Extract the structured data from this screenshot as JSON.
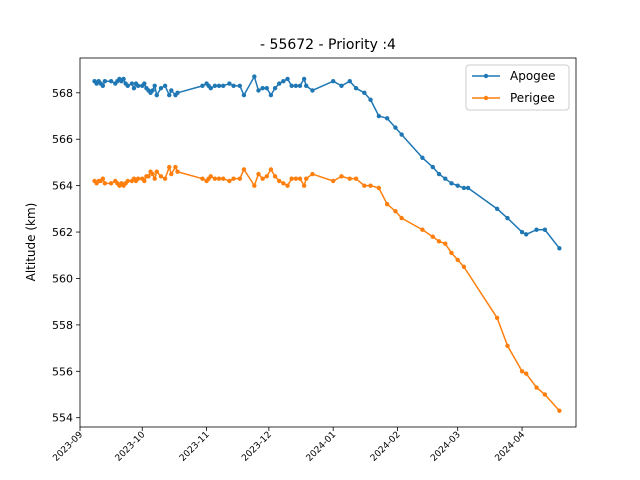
{
  "chart_data": {
    "type": "line",
    "title": "- 55672 - Priority :4",
    "xlabel": "",
    "ylabel": "Altitude (km)",
    "xlim": [
      "2023-09-01",
      "2024-04-27"
    ],
    "ylim": [
      553.6,
      569.5
    ],
    "x_ticks": [
      "2023-09",
      "2023-10",
      "2023-11",
      "2023-12",
      "2024-01",
      "2024-02",
      "2024-03",
      "2024-04"
    ],
    "y_ticks": [
      554,
      556,
      558,
      560,
      562,
      564,
      566,
      568
    ],
    "grid": false,
    "legend_position": "top-right",
    "series": [
      {
        "name": "Apogee",
        "color": "#1f77b4",
        "points": [
          [
            "2023-09-08",
            568.5
          ],
          [
            "2023-09-09",
            568.4
          ],
          [
            "2023-09-10",
            568.5
          ],
          [
            "2023-09-11",
            568.4
          ],
          [
            "2023-09-12",
            568.3
          ],
          [
            "2023-09-13",
            568.5
          ],
          [
            "2023-09-16",
            568.5
          ],
          [
            "2023-09-18",
            568.4
          ],
          [
            "2023-09-19",
            568.5
          ],
          [
            "2023-09-20",
            568.6
          ],
          [
            "2023-09-21",
            568.5
          ],
          [
            "2023-09-22",
            568.6
          ],
          [
            "2023-09-23",
            568.4
          ],
          [
            "2023-09-24",
            568.3
          ],
          [
            "2023-09-26",
            568.4
          ],
          [
            "2023-09-27",
            568.2
          ],
          [
            "2023-09-28",
            568.4
          ],
          [
            "2023-09-29",
            568.3
          ],
          [
            "2023-10-01",
            568.3
          ],
          [
            "2023-10-02",
            568.4
          ],
          [
            "2023-10-03",
            568.2
          ],
          [
            "2023-10-04",
            568.1
          ],
          [
            "2023-10-05",
            568.0
          ],
          [
            "2023-10-06",
            568.1
          ],
          [
            "2023-10-07",
            568.3
          ],
          [
            "2023-10-08",
            567.9
          ],
          [
            "2023-10-10",
            568.2
          ],
          [
            "2023-10-12",
            568.3
          ],
          [
            "2023-10-14",
            567.9
          ],
          [
            "2023-10-15",
            568.1
          ],
          [
            "2023-10-17",
            567.9
          ],
          [
            "2023-10-18",
            568.0
          ],
          [
            "2023-10-30",
            568.3
          ],
          [
            "2023-11-01",
            568.4
          ],
          [
            "2023-11-02",
            568.3
          ],
          [
            "2023-11-03",
            568.2
          ],
          [
            "2023-11-05",
            568.3
          ],
          [
            "2023-11-07",
            568.3
          ],
          [
            "2023-11-09",
            568.3
          ],
          [
            "2023-11-12",
            568.4
          ],
          [
            "2023-11-14",
            568.3
          ],
          [
            "2023-11-17",
            568.3
          ],
          [
            "2023-11-19",
            567.9
          ],
          [
            "2023-11-24",
            568.7
          ],
          [
            "2023-11-26",
            568.1
          ],
          [
            "2023-11-28",
            568.2
          ],
          [
            "2023-11-30",
            568.2
          ],
          [
            "2023-12-02",
            567.9
          ],
          [
            "2023-12-04",
            568.2
          ],
          [
            "2023-12-06",
            568.4
          ],
          [
            "2023-12-08",
            568.5
          ],
          [
            "2023-12-10",
            568.6
          ],
          [
            "2023-12-12",
            568.3
          ],
          [
            "2023-12-14",
            568.3
          ],
          [
            "2023-12-16",
            568.3
          ],
          [
            "2023-12-18",
            568.6
          ],
          [
            "2023-12-19",
            568.3
          ],
          [
            "2023-12-22",
            568.1
          ],
          [
            "2024-01-01",
            568.5
          ],
          [
            "2024-01-05",
            568.3
          ],
          [
            "2024-01-09",
            568.5
          ],
          [
            "2024-01-12",
            568.2
          ],
          [
            "2024-01-16",
            568.0
          ],
          [
            "2024-01-19",
            567.7
          ],
          [
            "2024-01-23",
            567.0
          ],
          [
            "2024-01-27",
            566.9
          ],
          [
            "2024-01-31",
            566.5
          ],
          [
            "2024-02-03",
            566.2
          ],
          [
            "2024-02-13",
            565.2
          ],
          [
            "2024-02-18",
            564.8
          ],
          [
            "2024-02-21",
            564.5
          ],
          [
            "2024-02-24",
            564.3
          ],
          [
            "2024-02-27",
            564.1
          ],
          [
            "2024-03-01",
            564.0
          ],
          [
            "2024-03-04",
            563.9
          ],
          [
            "2024-03-06",
            563.9
          ],
          [
            "2024-03-20",
            563.0
          ],
          [
            "2024-03-25",
            562.6
          ],
          [
            "2024-04-01",
            562.0
          ],
          [
            "2024-04-03",
            561.9
          ],
          [
            "2024-04-08",
            562.1
          ],
          [
            "2024-04-12",
            562.1
          ],
          [
            "2024-04-19",
            561.3
          ]
        ]
      },
      {
        "name": "Perigee",
        "color": "#ff7f0e",
        "points": [
          [
            "2023-09-08",
            564.2
          ],
          [
            "2023-09-09",
            564.1
          ],
          [
            "2023-09-10",
            564.2
          ],
          [
            "2023-09-11",
            564.2
          ],
          [
            "2023-09-12",
            564.3
          ],
          [
            "2023-09-13",
            564.1
          ],
          [
            "2023-09-16",
            564.1
          ],
          [
            "2023-09-18",
            564.2
          ],
          [
            "2023-09-19",
            564.1
          ],
          [
            "2023-09-20",
            564.0
          ],
          [
            "2023-09-21",
            564.1
          ],
          [
            "2023-09-22",
            564.0
          ],
          [
            "2023-09-23",
            564.1
          ],
          [
            "2023-09-24",
            564.2
          ],
          [
            "2023-09-26",
            564.2
          ],
          [
            "2023-09-27",
            564.3
          ],
          [
            "2023-09-28",
            564.2
          ],
          [
            "2023-09-29",
            564.3
          ],
          [
            "2023-10-01",
            564.3
          ],
          [
            "2023-10-02",
            564.2
          ],
          [
            "2023-10-03",
            564.4
          ],
          [
            "2023-10-04",
            564.4
          ],
          [
            "2023-10-05",
            564.6
          ],
          [
            "2023-10-06",
            564.5
          ],
          [
            "2023-10-07",
            564.3
          ],
          [
            "2023-10-08",
            564.6
          ],
          [
            "2023-10-10",
            564.4
          ],
          [
            "2023-10-12",
            564.3
          ],
          [
            "2023-10-14",
            564.8
          ],
          [
            "2023-10-15",
            564.5
          ],
          [
            "2023-10-17",
            564.8
          ],
          [
            "2023-10-18",
            564.6
          ],
          [
            "2023-10-30",
            564.3
          ],
          [
            "2023-11-01",
            564.2
          ],
          [
            "2023-11-02",
            564.3
          ],
          [
            "2023-11-03",
            564.4
          ],
          [
            "2023-11-05",
            564.3
          ],
          [
            "2023-11-07",
            564.3
          ],
          [
            "2023-11-09",
            564.3
          ],
          [
            "2023-11-12",
            564.2
          ],
          [
            "2023-11-14",
            564.3
          ],
          [
            "2023-11-17",
            564.3
          ],
          [
            "2023-11-19",
            564.7
          ],
          [
            "2023-11-24",
            564.0
          ],
          [
            "2023-11-26",
            564.5
          ],
          [
            "2023-11-28",
            564.3
          ],
          [
            "2023-11-30",
            564.4
          ],
          [
            "2023-12-02",
            564.7
          ],
          [
            "2023-12-04",
            564.4
          ],
          [
            "2023-12-06",
            564.2
          ],
          [
            "2023-12-08",
            564.1
          ],
          [
            "2023-12-10",
            564.0
          ],
          [
            "2023-12-12",
            564.3
          ],
          [
            "2023-12-14",
            564.3
          ],
          [
            "2023-12-16",
            564.3
          ],
          [
            "2023-12-18",
            564.0
          ],
          [
            "2023-12-19",
            564.3
          ],
          [
            "2023-12-22",
            564.5
          ],
          [
            "2024-01-01",
            564.2
          ],
          [
            "2024-01-05",
            564.4
          ],
          [
            "2024-01-09",
            564.3
          ],
          [
            "2024-01-12",
            564.3
          ],
          [
            "2024-01-16",
            564.0
          ],
          [
            "2024-01-19",
            564.0
          ],
          [
            "2024-01-23",
            563.9
          ],
          [
            "2024-01-27",
            563.2
          ],
          [
            "2024-01-31",
            562.9
          ],
          [
            "2024-02-03",
            562.6
          ],
          [
            "2024-02-13",
            562.1
          ],
          [
            "2024-02-18",
            561.8
          ],
          [
            "2024-02-21",
            561.6
          ],
          [
            "2024-02-24",
            561.5
          ],
          [
            "2024-02-27",
            561.1
          ],
          [
            "2024-03-01",
            560.8
          ],
          [
            "2024-03-04",
            560.5
          ],
          [
            "2024-03-20",
            558.3
          ],
          [
            "2024-03-25",
            557.1
          ],
          [
            "2024-04-01",
            556.0
          ],
          [
            "2024-04-03",
            555.9
          ],
          [
            "2024-04-08",
            555.3
          ],
          [
            "2024-04-12",
            555.0
          ],
          [
            "2024-04-19",
            554.3
          ]
        ]
      }
    ]
  }
}
